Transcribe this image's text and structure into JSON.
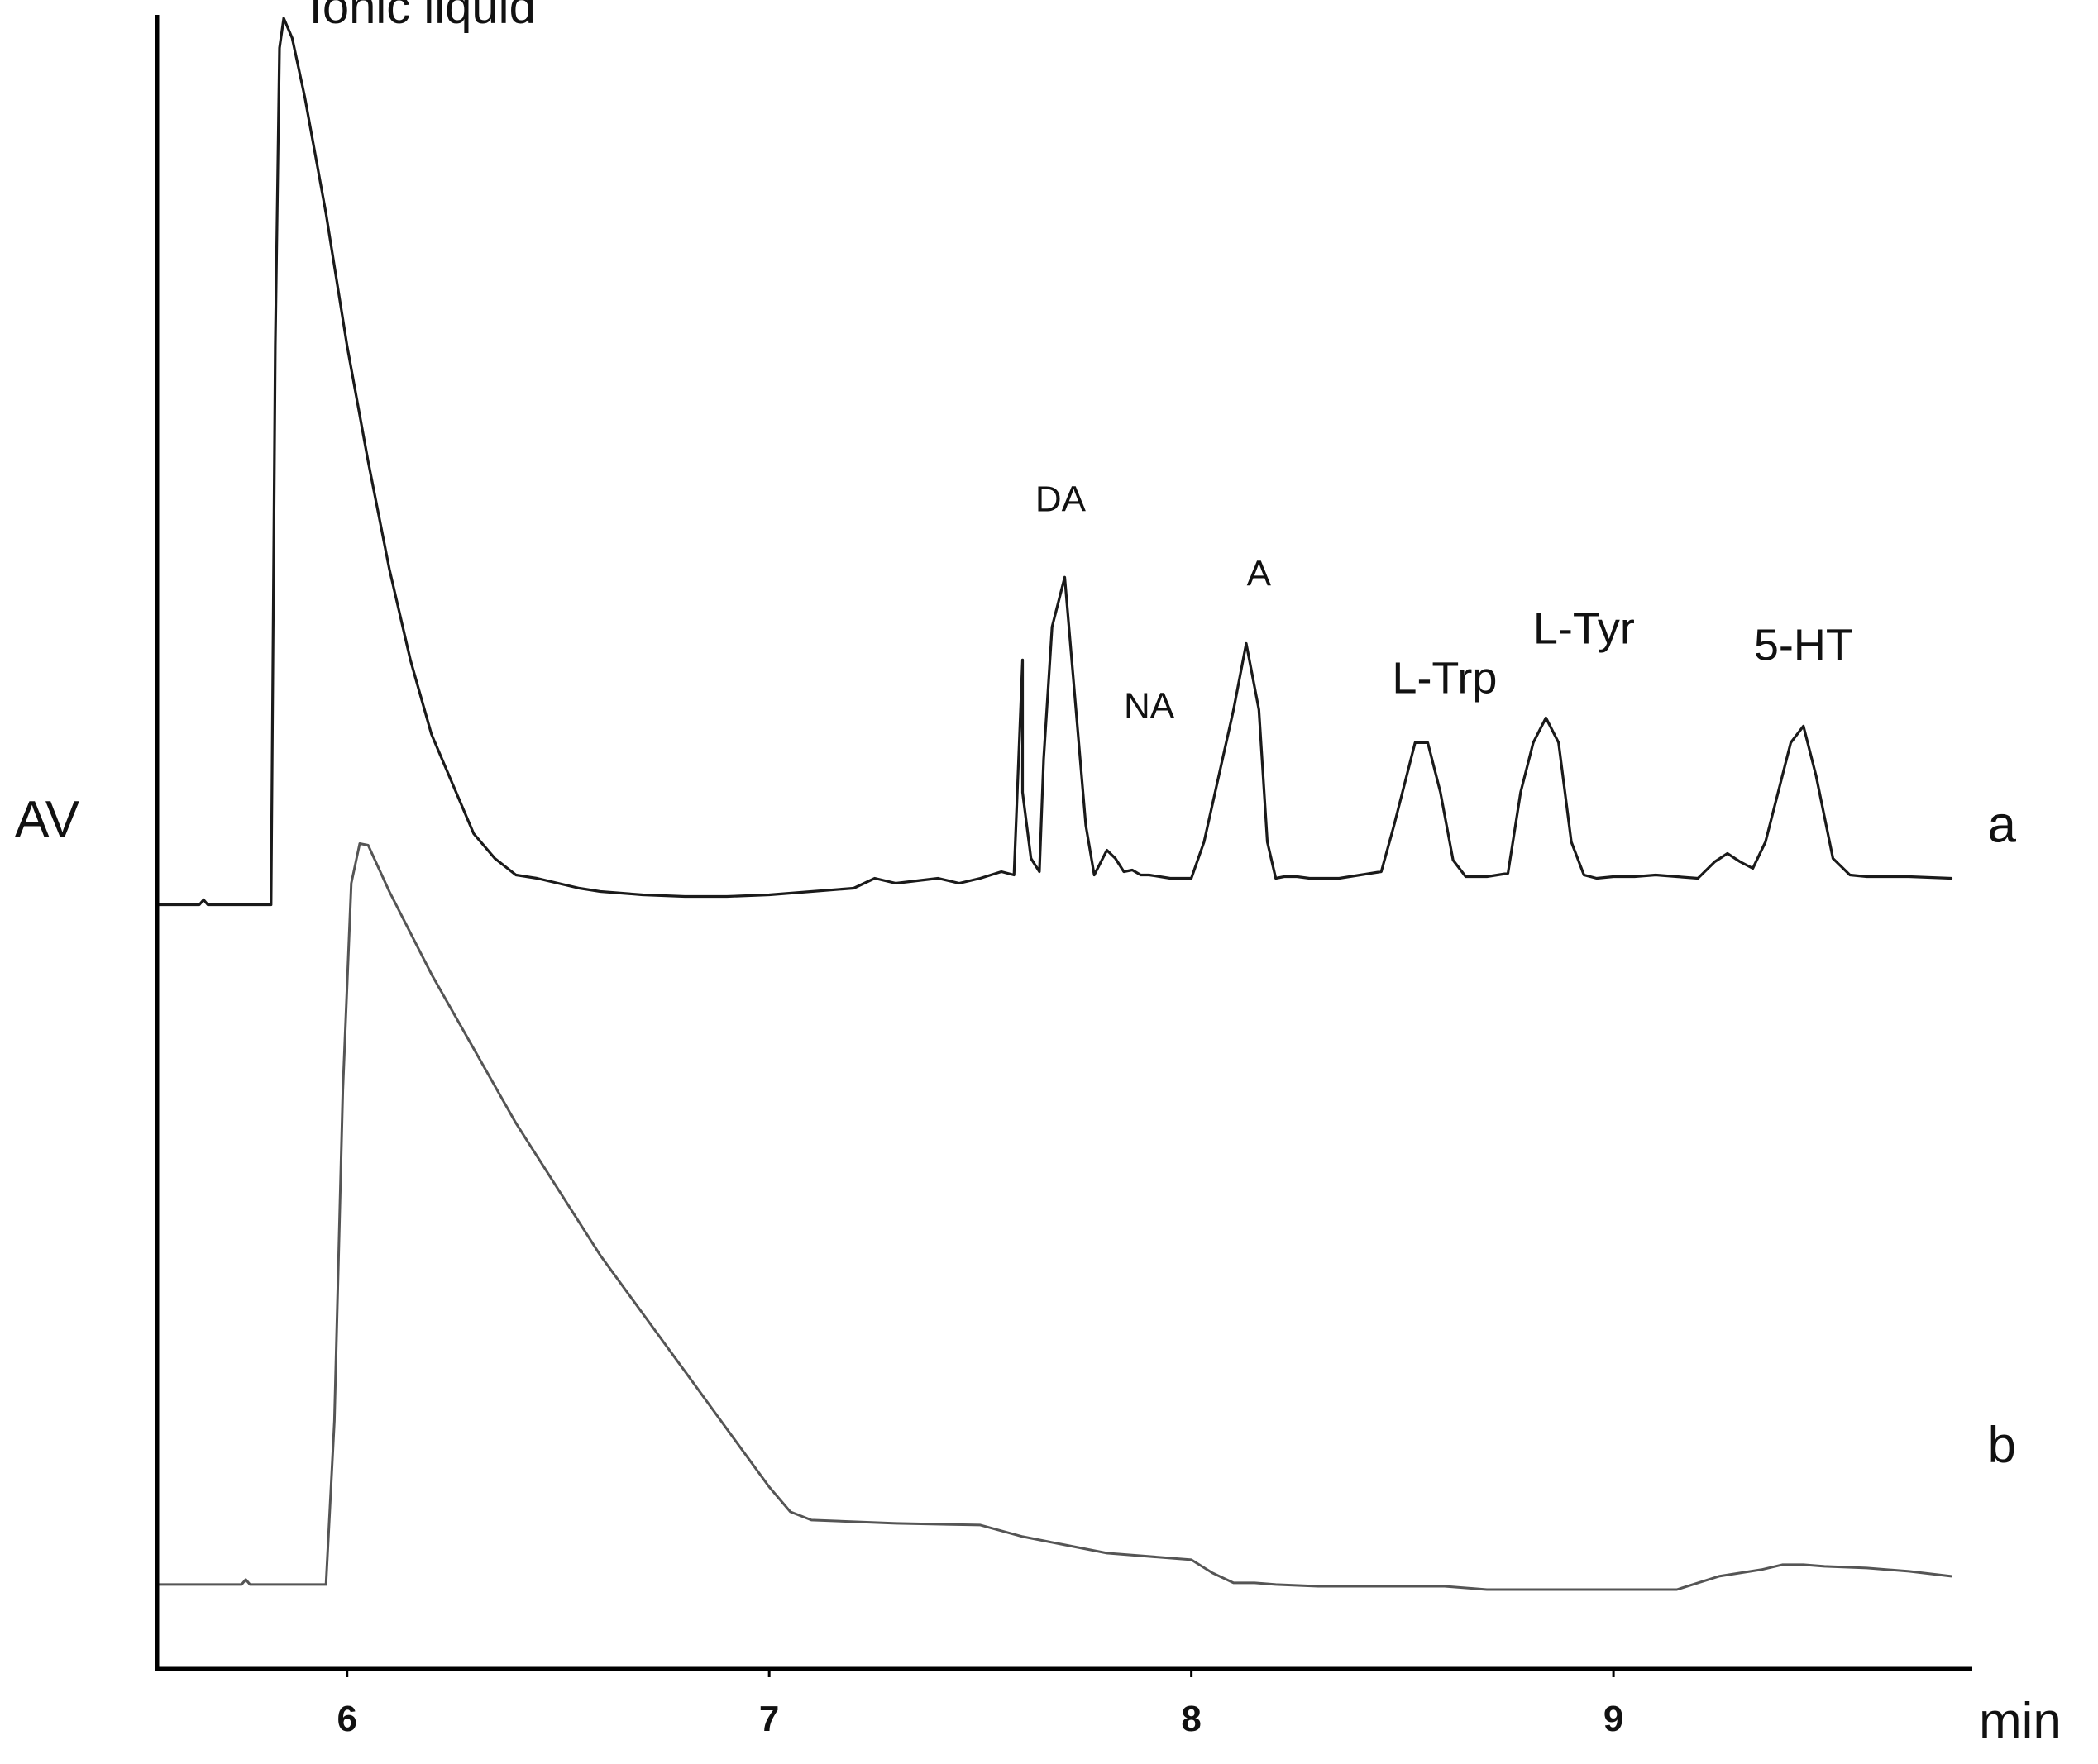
{
  "chart_data": {
    "type": "line",
    "title": "",
    "xlabel": "min",
    "ylabel": "AV",
    "xlim": [
      5.55,
      9.85
    ],
    "ylim": [
      0,
      100
    ],
    "xticks": [
      6,
      7,
      8,
      9
    ],
    "grid": false,
    "legend": "none",
    "series": [
      {
        "name": "a",
        "color": "#1a1a1a",
        "x": [
          5.55,
          5.65,
          5.66,
          5.67,
          5.68,
          5.82,
          5.83,
          5.84,
          5.85,
          5.87,
          5.9,
          5.95,
          6.0,
          6.05,
          6.1,
          6.15,
          6.2,
          6.25,
          6.3,
          6.35,
          6.4,
          6.45,
          6.5,
          6.55,
          6.6,
          6.7,
          6.8,
          6.9,
          7.0,
          7.1,
          7.2,
          7.25,
          7.3,
          7.4,
          7.45,
          7.5,
          7.55,
          7.58,
          7.6,
          7.6,
          7.62,
          7.64,
          7.65,
          7.67,
          7.7,
          7.72,
          7.75,
          7.77,
          7.8,
          7.82,
          7.84,
          7.86,
          7.88,
          7.9,
          7.95,
          8.0,
          8.03,
          8.1,
          8.13,
          8.16,
          8.18,
          8.2,
          8.22,
          8.25,
          8.28,
          8.35,
          8.4,
          8.45,
          8.48,
          8.5,
          8.53,
          8.56,
          8.59,
          8.62,
          8.65,
          8.7,
          8.75,
          8.78,
          8.81,
          8.84,
          8.87,
          8.9,
          8.93,
          8.96,
          9.0,
          9.05,
          9.1,
          9.15,
          9.2,
          9.24,
          9.27,
          9.3,
          9.33,
          9.36,
          9.39,
          9.42,
          9.45,
          9.48,
          9.52,
          9.56,
          9.6,
          9.7,
          9.8
        ],
        "y": [
          46.2,
          46.2,
          46.5,
          46.2,
          46.2,
          46.2,
          80.0,
          98.0,
          99.8,
          98.6,
          95.0,
          88.0,
          80.0,
          73.0,
          66.5,
          61.0,
          56.5,
          53.5,
          50.5,
          49.0,
          48.0,
          47.8,
          47.5,
          47.2,
          47.0,
          46.8,
          46.7,
          46.7,
          46.8,
          47.0,
          47.2,
          47.8,
          47.5,
          47.8,
          47.5,
          47.8,
          48.2,
          48.0,
          61.0,
          53.0,
          49.0,
          48.2,
          55.0,
          63.0,
          66.0,
          60.0,
          51.0,
          48.0,
          49.5,
          49.0,
          48.2,
          48.3,
          48.0,
          48.0,
          47.8,
          47.8,
          50.0,
          58.0,
          62.0,
          58.0,
          50.0,
          47.8,
          47.9,
          47.9,
          47.8,
          47.8,
          48.0,
          48.2,
          51.0,
          53.0,
          56.0,
          56.0,
          53.0,
          48.9,
          47.9,
          47.9,
          48.1,
          53.0,
          56.0,
          57.5,
          56.0,
          50.0,
          48.0,
          47.8,
          47.9,
          47.9,
          48.0,
          47.9,
          47.8,
          48.8,
          49.3,
          48.8,
          48.4,
          50.0,
          53.0,
          56.0,
          57.0,
          54.0,
          49.0,
          48.0,
          47.9,
          47.9,
          47.8
        ]
      },
      {
        "name": "b",
        "color": "#555555",
        "x": [
          5.55,
          5.75,
          5.76,
          5.77,
          5.78,
          5.95,
          5.97,
          5.99,
          6.01,
          6.03,
          6.05,
          6.1,
          6.15,
          6.2,
          6.3,
          6.4,
          6.5,
          6.6,
          6.7,
          6.8,
          6.9,
          7.0,
          7.05,
          7.1,
          7.3,
          7.5,
          7.6,
          7.7,
          7.8,
          8.0,
          8.05,
          8.1,
          8.15,
          8.2,
          8.3,
          8.4,
          8.5,
          8.6,
          8.7,
          8.8,
          8.9,
          9.0,
          9.1,
          9.15,
          9.2,
          9.25,
          9.3,
          9.35,
          9.4,
          9.45,
          9.5,
          9.6,
          9.7,
          9.8
        ],
        "y": [
          5.1,
          5.1,
          5.4,
          5.1,
          5.1,
          5.1,
          15.0,
          35.0,
          47.5,
          49.9,
          49.8,
          47.0,
          44.5,
          42.0,
          37.5,
          33.0,
          29.0,
          25.0,
          21.5,
          18.0,
          14.5,
          11.0,
          9.5,
          9.0,
          8.8,
          8.7,
          8.0,
          7.5,
          7.0,
          6.6,
          5.8,
          5.2,
          5.2,
          5.1,
          5.0,
          5.0,
          5.0,
          5.0,
          4.8,
          4.8,
          4.8,
          4.8,
          4.8,
          4.8,
          5.2,
          5.6,
          5.8,
          6.0,
          6.3,
          6.3,
          6.2,
          6.1,
          5.9,
          5.6
        ]
      }
    ],
    "peak_labels": [
      {
        "text": "Ionic liquid",
        "x": 5.91,
        "y": 99.5,
        "size": 58
      },
      {
        "text": "DA",
        "x": 7.69,
        "y": 70.0,
        "size": 44
      },
      {
        "text": "NA",
        "x": 7.9,
        "y": 57.5,
        "size": 44
      },
      {
        "text": "A",
        "x": 8.16,
        "y": 65.5,
        "size": 44
      },
      {
        "text": "L-Trp",
        "x": 8.6,
        "y": 59.0,
        "size": 54
      },
      {
        "text": "L-Tyr",
        "x": 8.93,
        "y": 62.0,
        "size": 54
      },
      {
        "text": "5-HT",
        "x": 9.45,
        "y": 61.0,
        "size": 54
      },
      {
        "text": "a",
        "x": 9.92,
        "y": 50.0,
        "size": 62
      },
      {
        "text": "b",
        "x": 9.92,
        "y": 12.5,
        "size": 62
      }
    ]
  }
}
